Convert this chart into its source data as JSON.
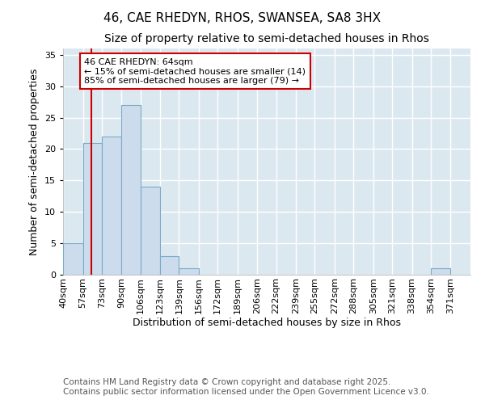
{
  "title_line1": "46, CAE RHEDYN, RHOS, SWANSEA, SA8 3HX",
  "title_line2": "Size of property relative to semi-detached houses in Rhos",
  "xlabel": "Distribution of semi-detached houses by size in Rhos",
  "ylabel": "Number of semi-detached properties",
  "bin_labels": [
    "40sqm",
    "57sqm",
    "73sqm",
    "90sqm",
    "106sqm",
    "123sqm",
    "139sqm",
    "156sqm",
    "172sqm",
    "189sqm",
    "206sqm",
    "222sqm",
    "239sqm",
    "255sqm",
    "272sqm",
    "288sqm",
    "305sqm",
    "321sqm",
    "338sqm",
    "354sqm",
    "371sqm"
  ],
  "bin_edges": [
    40,
    57,
    73,
    90,
    106,
    123,
    139,
    156,
    172,
    189,
    206,
    222,
    239,
    255,
    272,
    288,
    305,
    321,
    338,
    354,
    371,
    388
  ],
  "counts": [
    5,
    21,
    22,
    27,
    14,
    3,
    1,
    0,
    0,
    0,
    0,
    0,
    0,
    0,
    0,
    0,
    0,
    0,
    0,
    1,
    0
  ],
  "bar_color": "#ccdcec",
  "bar_edge_color": "#7aaac8",
  "property_size": 64,
  "vline_color": "#cc0000",
  "annotation_text": "46 CAE RHEDYN: 64sqm\n← 15% of semi-detached houses are smaller (14)\n85% of semi-detached houses are larger (79) →",
  "annotation_box_color": "#ffffff",
  "annotation_box_edge": "#cc0000",
  "ylim": [
    0,
    36
  ],
  "yticks": [
    0,
    5,
    10,
    15,
    20,
    25,
    30,
    35
  ],
  "background_color": "#dce8f0",
  "grid_color": "#ffffff",
  "footer_text": "Contains HM Land Registry data © Crown copyright and database right 2025.\nContains public sector information licensed under the Open Government Licence v3.0.",
  "title_fontsize": 11,
  "subtitle_fontsize": 10,
  "axis_label_fontsize": 9,
  "tick_fontsize": 8,
  "annotation_fontsize": 8,
  "footer_fontsize": 7.5
}
